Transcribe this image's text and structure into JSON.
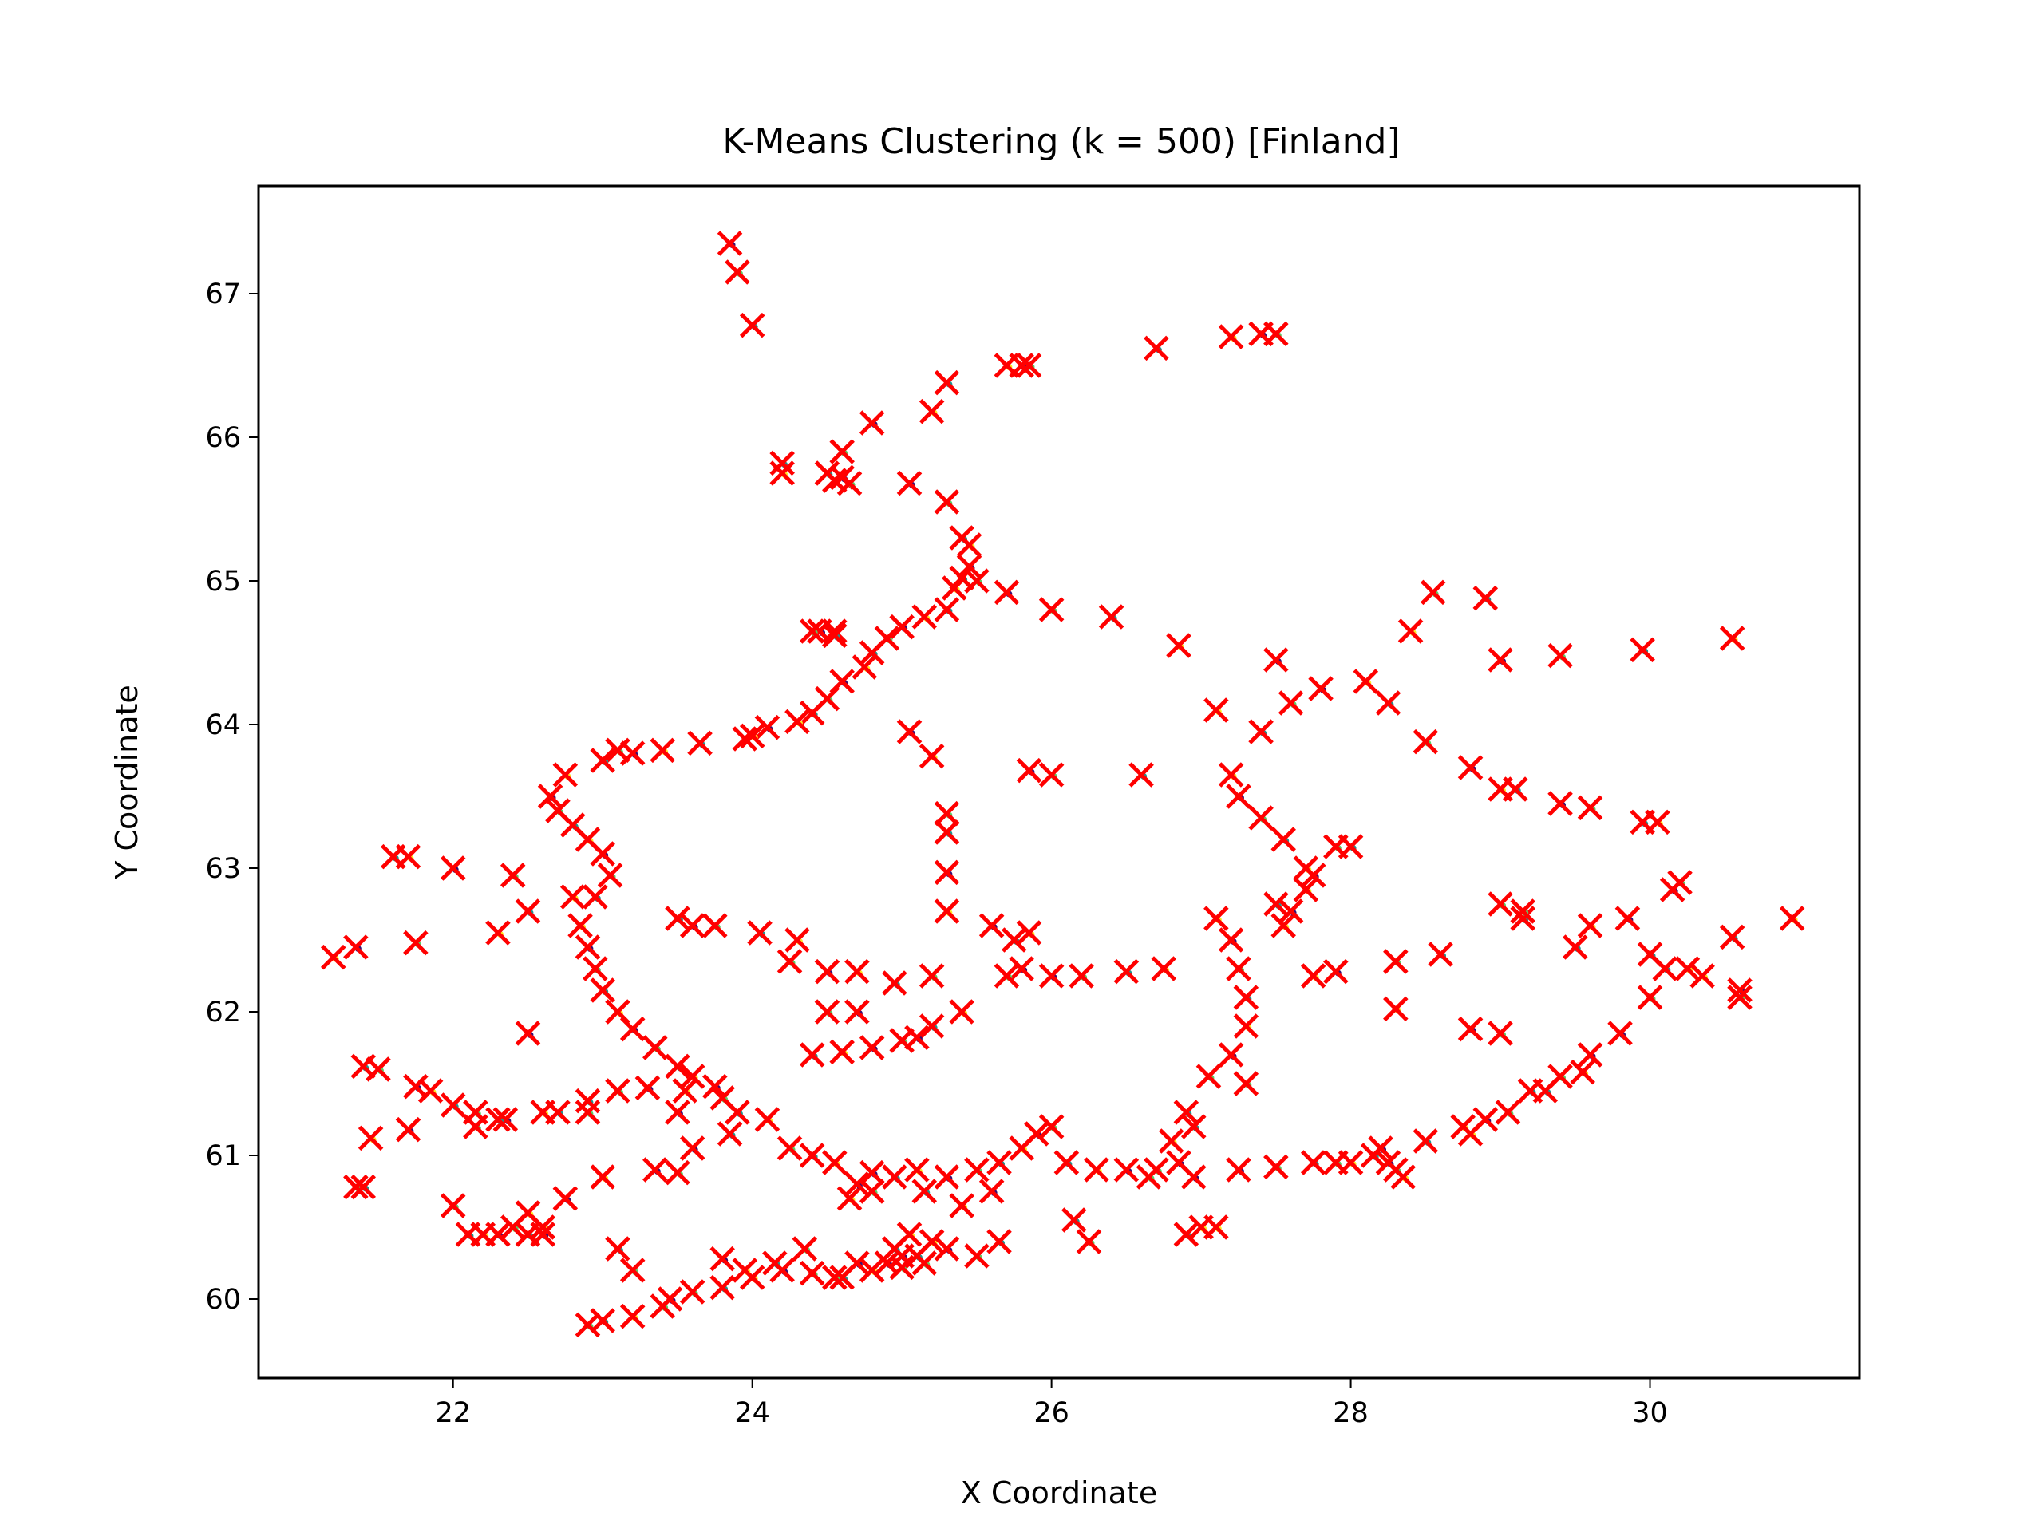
{
  "chart_data": {
    "type": "scatter",
    "title": "K-Means Clustering (k = 500) [Finland]",
    "xlabel": "X Coordinate",
    "ylabel": "Y Coordinate",
    "xlim": [
      20.7,
      31.4
    ],
    "ylim": [
      59.45,
      67.75
    ],
    "xticks": [
      22,
      24,
      26,
      28,
      30
    ],
    "yticks": [
      60,
      61,
      62,
      63,
      64,
      65,
      66,
      67
    ],
    "grid": false,
    "legend": "none",
    "colors": {
      "centroid_marker": "#ff0000",
      "point_dark": "#3b0f70",
      "point_green": "#5ec962",
      "point_teal": "#21918c",
      "point_yellow": "#fde725"
    },
    "series": [
      {
        "marker": "x",
        "color": "#ff0000",
        "points": [
          [
            23.85,
            67.35
          ],
          [
            23.9,
            67.15
          ],
          [
            24.0,
            66.78
          ],
          [
            25.7,
            66.5
          ],
          [
            25.8,
            66.5
          ],
          [
            25.85,
            66.5
          ],
          [
            26.7,
            66.62
          ],
          [
            27.2,
            66.7
          ],
          [
            27.4,
            66.72
          ],
          [
            27.5,
            66.72
          ],
          [
            25.3,
            66.38
          ],
          [
            25.2,
            66.18
          ],
          [
            24.8,
            66.1
          ],
          [
            24.6,
            65.9
          ],
          [
            24.5,
            65.75
          ],
          [
            24.55,
            65.7
          ],
          [
            24.6,
            65.72
          ],
          [
            24.65,
            65.68
          ],
          [
            24.2,
            65.82
          ],
          [
            24.2,
            65.75
          ],
          [
            25.05,
            65.68
          ],
          [
            25.3,
            65.55
          ],
          [
            25.4,
            65.3
          ],
          [
            25.45,
            65.25
          ],
          [
            25.45,
            65.1
          ],
          [
            25.5,
            65.0
          ],
          [
            25.4,
            65.02
          ],
          [
            25.35,
            64.95
          ],
          [
            25.7,
            64.92
          ],
          [
            26.0,
            64.8
          ],
          [
            26.4,
            64.75
          ],
          [
            26.85,
            64.55
          ],
          [
            24.45,
            64.65
          ],
          [
            24.55,
            64.65
          ],
          [
            25.3,
            64.8
          ],
          [
            25.15,
            64.75
          ],
          [
            25.0,
            64.68
          ],
          [
            24.9,
            64.6
          ],
          [
            24.8,
            64.5
          ],
          [
            24.75,
            64.4
          ],
          [
            24.6,
            64.3
          ],
          [
            24.5,
            64.18
          ],
          [
            24.4,
            64.08
          ],
          [
            24.3,
            64.02
          ],
          [
            24.1,
            63.98
          ],
          [
            23.95,
            63.9
          ],
          [
            23.65,
            63.87
          ],
          [
            23.4,
            63.82
          ],
          [
            23.2,
            63.8
          ],
          [
            23.1,
            63.82
          ],
          [
            23.0,
            63.75
          ],
          [
            22.75,
            63.65
          ],
          [
            22.65,
            63.5
          ],
          [
            22.7,
            63.4
          ],
          [
            22.8,
            63.3
          ],
          [
            22.9,
            63.2
          ],
          [
            23.0,
            63.1
          ],
          [
            23.05,
            62.95
          ],
          [
            22.95,
            62.8
          ],
          [
            22.85,
            62.6
          ],
          [
            22.9,
            62.45
          ],
          [
            22.95,
            62.3
          ],
          [
            23.0,
            62.15
          ],
          [
            23.1,
            62.0
          ],
          [
            23.2,
            61.88
          ],
          [
            23.35,
            61.75
          ],
          [
            23.5,
            61.62
          ],
          [
            23.6,
            61.55
          ],
          [
            23.75,
            61.48
          ],
          [
            23.8,
            61.4
          ],
          [
            23.9,
            61.3
          ],
          [
            23.55,
            61.45
          ],
          [
            23.3,
            61.47
          ],
          [
            23.1,
            61.45
          ],
          [
            22.9,
            61.38
          ],
          [
            22.6,
            61.3
          ],
          [
            22.35,
            61.25
          ],
          [
            22.15,
            61.3
          ],
          [
            22.0,
            61.35
          ],
          [
            21.85,
            61.45
          ],
          [
            21.75,
            61.48
          ],
          [
            21.5,
            61.6
          ],
          [
            21.4,
            61.62
          ],
          [
            21.45,
            61.12
          ],
          [
            21.7,
            61.18
          ],
          [
            21.35,
            60.78
          ],
          [
            21.4,
            60.78
          ],
          [
            21.2,
            62.38
          ],
          [
            21.35,
            62.45
          ],
          [
            21.75,
            62.48
          ],
          [
            21.6,
            63.08
          ],
          [
            21.7,
            63.08
          ],
          [
            22.0,
            63.0
          ],
          [
            22.4,
            62.95
          ],
          [
            22.5,
            62.7
          ],
          [
            22.3,
            62.55
          ],
          [
            22.5,
            61.85
          ],
          [
            22.0,
            60.65
          ],
          [
            22.1,
            60.45
          ],
          [
            22.2,
            60.45
          ],
          [
            22.3,
            60.45
          ],
          [
            22.4,
            60.5
          ],
          [
            22.5,
            60.45
          ],
          [
            22.6,
            60.5
          ],
          [
            22.75,
            60.7
          ],
          [
            22.9,
            59.82
          ],
          [
            23.0,
            59.85
          ],
          [
            23.2,
            59.88
          ],
          [
            23.45,
            60.0
          ],
          [
            23.6,
            60.05
          ],
          [
            23.8,
            60.08
          ],
          [
            24.0,
            60.15
          ],
          [
            24.2,
            60.2
          ],
          [
            24.4,
            60.18
          ],
          [
            24.6,
            60.15
          ],
          [
            24.8,
            60.2
          ],
          [
            24.9,
            60.25
          ],
          [
            25.0,
            60.22
          ],
          [
            25.1,
            60.3
          ],
          [
            25.2,
            60.4
          ],
          [
            25.3,
            60.35
          ],
          [
            25.5,
            60.3
          ],
          [
            25.65,
            60.4
          ],
          [
            24.65,
            60.7
          ],
          [
            24.7,
            60.8
          ],
          [
            24.8,
            60.75
          ],
          [
            24.95,
            60.85
          ],
          [
            25.1,
            60.9
          ],
          [
            25.3,
            60.85
          ],
          [
            25.5,
            60.9
          ],
          [
            25.65,
            60.95
          ],
          [
            25.8,
            61.05
          ],
          [
            25.9,
            61.15
          ],
          [
            26.0,
            61.2
          ],
          [
            26.1,
            60.95
          ],
          [
            26.3,
            60.9
          ],
          [
            26.5,
            60.9
          ],
          [
            26.7,
            60.9
          ],
          [
            26.9,
            60.45
          ],
          [
            27.1,
            60.5
          ],
          [
            27.25,
            60.9
          ],
          [
            27.5,
            60.92
          ],
          [
            27.75,
            60.95
          ],
          [
            28.0,
            60.95
          ],
          [
            28.2,
            61.05
          ],
          [
            28.3,
            60.9
          ],
          [
            28.5,
            61.1
          ],
          [
            28.75,
            61.2
          ],
          [
            28.9,
            61.25
          ],
          [
            29.05,
            61.3
          ],
          [
            29.3,
            61.45
          ],
          [
            29.55,
            61.58
          ],
          [
            29.8,
            61.85
          ],
          [
            30.0,
            62.1
          ],
          [
            30.1,
            62.3
          ],
          [
            30.25,
            62.3
          ],
          [
            30.6,
            62.15
          ],
          [
            30.6,
            62.1
          ],
          [
            30.55,
            62.52
          ],
          [
            30.95,
            62.65
          ],
          [
            30.15,
            62.85
          ],
          [
            30.2,
            62.9
          ],
          [
            29.95,
            63.32
          ],
          [
            30.05,
            63.32
          ],
          [
            29.4,
            63.45
          ],
          [
            29.6,
            63.42
          ],
          [
            29.1,
            63.55
          ],
          [
            29.0,
            63.55
          ],
          [
            28.8,
            63.7
          ],
          [
            28.5,
            63.88
          ],
          [
            28.25,
            64.15
          ],
          [
            28.1,
            64.3
          ],
          [
            27.8,
            64.25
          ],
          [
            27.6,
            64.15
          ],
          [
            27.4,
            63.95
          ],
          [
            27.2,
            63.65
          ],
          [
            27.25,
            63.5
          ],
          [
            27.4,
            63.35
          ],
          [
            27.55,
            63.2
          ],
          [
            27.7,
            63.0
          ],
          [
            27.75,
            62.95
          ],
          [
            27.9,
            63.15
          ],
          [
            28.0,
            63.15
          ],
          [
            27.75,
            62.25
          ],
          [
            27.9,
            62.28
          ],
          [
            28.3,
            62.35
          ],
          [
            28.6,
            62.4
          ],
          [
            28.3,
            62.02
          ],
          [
            28.8,
            61.88
          ],
          [
            29.0,
            61.85
          ],
          [
            29.5,
            62.45
          ],
          [
            29.6,
            62.6
          ],
          [
            29.85,
            62.65
          ],
          [
            29.0,
            62.75
          ],
          [
            29.15,
            62.65
          ],
          [
            27.1,
            62.65
          ],
          [
            27.2,
            62.5
          ],
          [
            27.25,
            62.3
          ],
          [
            27.3,
            62.1
          ],
          [
            27.3,
            61.9
          ],
          [
            27.2,
            61.7
          ],
          [
            27.05,
            61.55
          ],
          [
            26.9,
            61.3
          ],
          [
            26.8,
            61.1
          ],
          [
            26.85,
            60.95
          ],
          [
            27.3,
            61.5
          ],
          [
            27.5,
            62.75
          ],
          [
            27.7,
            62.85
          ],
          [
            26.0,
            62.25
          ],
          [
            26.2,
            62.25
          ],
          [
            26.5,
            62.28
          ],
          [
            26.75,
            62.3
          ],
          [
            25.8,
            62.3
          ],
          [
            25.7,
            62.25
          ],
          [
            25.75,
            62.5
          ],
          [
            25.85,
            62.55
          ],
          [
            25.6,
            62.6
          ],
          [
            25.2,
            62.25
          ],
          [
            24.95,
            62.2
          ],
          [
            24.7,
            62.28
          ],
          [
            24.5,
            62.28
          ],
          [
            24.25,
            62.35
          ],
          [
            24.05,
            62.55
          ],
          [
            24.3,
            62.5
          ],
          [
            23.6,
            62.6
          ],
          [
            23.75,
            62.6
          ],
          [
            23.5,
            62.65
          ],
          [
            25.3,
            62.7
          ],
          [
            25.3,
            62.97
          ],
          [
            25.3,
            63.38
          ],
          [
            25.3,
            63.25
          ],
          [
            25.2,
            63.78
          ],
          [
            25.85,
            63.68
          ],
          [
            26.0,
            63.65
          ],
          [
            26.6,
            63.65
          ],
          [
            24.0,
            63.92
          ],
          [
            25.05,
            63.95
          ],
          [
            24.4,
            64.65
          ],
          [
            24.55,
            64.62
          ],
          [
            27.1,
            64.1
          ],
          [
            27.5,
            64.45
          ],
          [
            28.55,
            64.92
          ],
          [
            28.9,
            64.88
          ],
          [
            28.4,
            64.65
          ],
          [
            29.0,
            64.45
          ],
          [
            29.4,
            64.48
          ],
          [
            29.95,
            64.52
          ],
          [
            30.55,
            64.6
          ],
          [
            24.7,
            62.0
          ],
          [
            24.5,
            62.0
          ],
          [
            24.4,
            61.7
          ],
          [
            24.6,
            61.72
          ],
          [
            24.8,
            61.75
          ],
          [
            25.0,
            61.8
          ],
          [
            25.2,
            61.9
          ],
          [
            25.4,
            62.0
          ],
          [
            25.1,
            61.82
          ],
          [
            24.25,
            61.05
          ],
          [
            24.4,
            61.0
          ],
          [
            24.55,
            60.95
          ],
          [
            24.8,
            60.88
          ],
          [
            24.35,
            60.35
          ],
          [
            24.15,
            60.25
          ],
          [
            23.95,
            60.2
          ],
          [
            23.8,
            60.28
          ],
          [
            23.2,
            60.2
          ],
          [
            23.1,
            60.35
          ],
          [
            23.0,
            60.85
          ],
          [
            23.35,
            60.9
          ],
          [
            23.5,
            60.88
          ],
          [
            23.85,
            61.15
          ],
          [
            24.1,
            61.25
          ],
          [
            23.5,
            61.3
          ],
          [
            22.9,
            61.3
          ],
          [
            22.7,
            61.3
          ],
          [
            22.8,
            62.8
          ],
          [
            23.6,
            61.05
          ],
          [
            27.9,
            60.95
          ],
          [
            28.15,
            61.0
          ],
          [
            28.35,
            60.85
          ],
          [
            28.25,
            60.95
          ],
          [
            29.15,
            62.7
          ],
          [
            30.0,
            62.4
          ],
          [
            30.35,
            62.25
          ],
          [
            29.6,
            61.7
          ],
          [
            29.4,
            61.55
          ],
          [
            29.2,
            61.45
          ],
          [
            28.8,
            61.15
          ],
          [
            25.0,
            60.3
          ],
          [
            25.15,
            60.25
          ],
          [
            24.95,
            60.35
          ],
          [
            25.05,
            60.45
          ],
          [
            24.7,
            60.25
          ],
          [
            24.55,
            60.15
          ],
          [
            25.15,
            60.75
          ],
          [
            25.4,
            60.65
          ],
          [
            25.6,
            60.75
          ],
          [
            26.25,
            60.4
          ],
          [
            26.15,
            60.55
          ],
          [
            27.0,
            60.5
          ],
          [
            26.95,
            60.85
          ],
          [
            26.65,
            60.85
          ],
          [
            26.95,
            61.2
          ],
          [
            27.55,
            62.6
          ],
          [
            27.6,
            62.7
          ],
          [
            22.15,
            61.2
          ],
          [
            22.3,
            61.25
          ],
          [
            22.5,
            60.6
          ],
          [
            22.6,
            60.45
          ],
          [
            23.4,
            59.95
          ]
        ]
      }
    ]
  }
}
